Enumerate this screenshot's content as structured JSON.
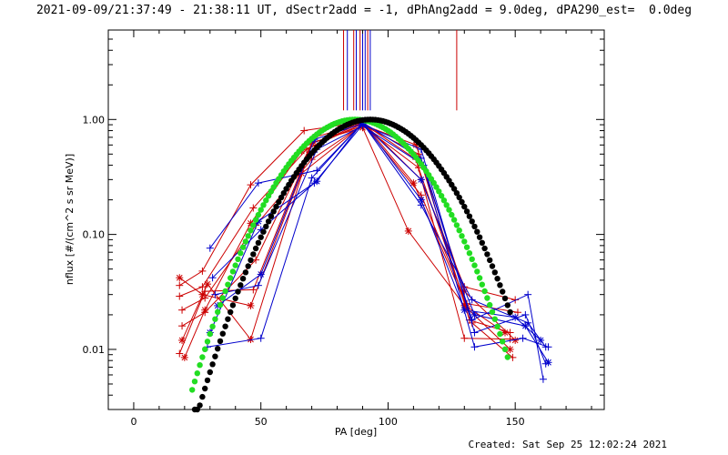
{
  "title": "2021-09-09/21:37:49 - 21:38:11 UT, dSectr2add = -1, dPhAng2add = 9.0deg, dPA290_est=  0.0deg",
  "footer": "Created: Sat Sep 25 12:02:24 2021",
  "chart_data": {
    "type": "line",
    "xlabel": "PA [deg]",
    "ylabel": "nflux [#/(cm^2 s sr MeV)]",
    "xlim": [
      -10,
      185
    ],
    "ylim": [
      0.003,
      6.0
    ],
    "yscale": "log",
    "xticks": [
      0,
      50,
      100,
      150
    ],
    "yticks": [
      0.01,
      0.1,
      1.0
    ],
    "ytick_labels": [
      "0.01",
      "0.10",
      "1.00"
    ],
    "colors": {
      "red": "#cc0000",
      "blue": "#0000cc",
      "green": "#22dd22",
      "black": "#000000"
    },
    "marker_lines": [
      {
        "x": 82.5,
        "y_low": 1.2,
        "color": "#cc0000"
      },
      {
        "x": 84.0,
        "y_low": 1.2,
        "color": "#0000cc"
      },
      {
        "x": 86.5,
        "y_low": 1.2,
        "color": "#cc0000"
      },
      {
        "x": 87.5,
        "y_low": 1.2,
        "color": "#0000cc"
      },
      {
        "x": 89.0,
        "y_low": 1.2,
        "color": "#cc0000"
      },
      {
        "x": 90.0,
        "y_low": 1.2,
        "color": "#0000cc"
      },
      {
        "x": 91.0,
        "y_low": 1.2,
        "color": "#0000cc"
      },
      {
        "x": 92.0,
        "y_low": 1.2,
        "color": "#cc0000"
      },
      {
        "x": 93.0,
        "y_low": 1.2,
        "color": "#0000cc"
      },
      {
        "x": 127.0,
        "y_low": 1.2,
        "color": "#cc0000"
      }
    ],
    "series": [
      {
        "color": "#cc0000",
        "marker": "+",
        "points": [
          [
            18,
            0.036
          ],
          [
            27,
            0.048
          ],
          [
            46,
            0.27
          ],
          [
            67,
            0.8
          ],
          [
            90,
            0.95
          ],
          [
            113,
            0.3
          ],
          [
            130,
            0.035
          ],
          [
            150,
            0.027
          ]
        ]
      },
      {
        "color": "#cc0000",
        "marker": "+",
        "points": [
          [
            18,
            0.029
          ],
          [
            27,
            0.035
          ],
          [
            47,
            0.17
          ],
          [
            68,
            0.55
          ],
          [
            90,
            0.92
          ],
          [
            113,
            0.22
          ],
          [
            131,
            0.025
          ],
          [
            151,
            0.021
          ]
        ]
      },
      {
        "color": "#cc0000",
        "marker": "+",
        "points": [
          [
            19,
            0.022
          ],
          [
            28,
            0.028
          ],
          [
            48,
            0.12
          ],
          [
            70,
            0.45
          ],
          [
            90,
            0.9
          ],
          [
            112,
            0.5
          ],
          [
            132,
            0.018
          ],
          [
            148,
            0.014
          ]
        ]
      },
      {
        "color": "#cc0000",
        "marker": "+",
        "points": [
          [
            19,
            0.016
          ],
          [
            28,
            0.021
          ],
          [
            48,
            0.06
          ],
          [
            70,
            0.62
          ],
          [
            90,
            0.88
          ],
          [
            112,
            0.38
          ],
          [
            133,
            0.017
          ],
          [
            149,
            0.0085
          ]
        ]
      },
      {
        "color": "#cc0000",
        "marker": "+",
        "points": [
          [
            18,
            0.0092
          ],
          [
            28,
            0.032
          ],
          [
            47,
            0.033
          ],
          [
            71,
            0.7
          ],
          [
            90,
            0.93
          ],
          [
            111,
            0.45
          ],
          [
            130,
            0.0125
          ],
          [
            148,
            0.0123
          ]
        ]
      },
      {
        "color": "#cc0000",
        "marker": "*",
        "points": [
          [
            18,
            0.042
          ],
          [
            27,
            0.03
          ],
          [
            46,
            0.024
          ],
          [
            66,
            0.34
          ],
          [
            90,
            0.9
          ],
          [
            111,
            0.6
          ],
          [
            130,
            0.032
          ],
          [
            150,
            0.012
          ]
        ]
      },
      {
        "color": "#cc0000",
        "marker": "*",
        "points": [
          [
            19,
            0.012
          ],
          [
            29,
            0.037
          ],
          [
            46,
            0.0122
          ],
          [
            70,
            0.63
          ],
          [
            90,
            0.85
          ],
          [
            108,
            0.107
          ],
          [
            130,
            0.024
          ],
          [
            148,
            0.01
          ]
        ]
      },
      {
        "color": "#cc0000",
        "marker": "*",
        "points": [
          [
            20,
            0.0085
          ],
          [
            28,
            0.022
          ],
          [
            46,
            0.125
          ],
          [
            66,
            0.53
          ],
          [
            90,
            0.95
          ],
          [
            110,
            0.28
          ],
          [
            131,
            0.0235
          ],
          [
            146,
            0.014
          ]
        ]
      },
      {
        "color": "#0000cc",
        "marker": "+",
        "points": [
          [
            30,
            0.076
          ],
          [
            49,
            0.28
          ],
          [
            72,
            0.36
          ],
          [
            90,
            0.93
          ],
          [
            113,
            0.18
          ],
          [
            133,
            0.027
          ],
          [
            155,
            0.017
          ],
          [
            162,
            0.0105
          ]
        ]
      },
      {
        "color": "#0000cc",
        "marker": "+",
        "points": [
          [
            29,
            0.0105
          ],
          [
            50,
            0.0125
          ],
          [
            70,
            0.31
          ],
          [
            90,
            0.94
          ],
          [
            113,
            0.46
          ],
          [
            134,
            0.0105
          ],
          [
            153,
            0.0125
          ],
          [
            163,
            0.0105
          ]
        ]
      },
      {
        "color": "#0000cc",
        "marker": "+",
        "points": [
          [
            31,
            0.042
          ],
          [
            50,
            0.11
          ],
          [
            71,
            0.28
          ],
          [
            90,
            0.9
          ],
          [
            113,
            0.55
          ],
          [
            134,
            0.014
          ],
          [
            154,
            0.02
          ],
          [
            162,
            0.0075
          ]
        ]
      },
      {
        "color": "#0000cc",
        "marker": "+",
        "points": [
          [
            32,
            0.03
          ],
          [
            49,
            0.036
          ],
          [
            72,
            0.55
          ],
          [
            90,
            0.88
          ],
          [
            114,
            0.4
          ],
          [
            133,
            0.018
          ],
          [
            155,
            0.03
          ],
          [
            161,
            0.0055
          ]
        ]
      },
      {
        "color": "#0000cc",
        "marker": "*",
        "points": [
          [
            33,
            0.024
          ],
          [
            50,
            0.045
          ],
          [
            71,
            0.67
          ],
          [
            90,
            0.92
          ],
          [
            113,
            0.3
          ],
          [
            134,
            0.02
          ],
          [
            154,
            0.016
          ],
          [
            163,
            0.0077
          ]
        ]
      },
      {
        "color": "#0000cc",
        "marker": "*",
        "points": [
          [
            30,
            0.014
          ],
          [
            49,
            0.13
          ],
          [
            72,
            0.29
          ],
          [
            90,
            0.95
          ],
          [
            113,
            0.2
          ],
          [
            130,
            0.022
          ],
          [
            150,
            0.019
          ],
          [
            160,
            0.012
          ]
        ]
      }
    ],
    "model_curves": [
      {
        "color": "#22dd22",
        "center": 87.0,
        "width": 27.5,
        "x_range": [
          23,
          147
        ]
      },
      {
        "color": "#000000",
        "center": 93.0,
        "width": 28.0,
        "x_range": [
          24,
          148
        ]
      }
    ]
  }
}
